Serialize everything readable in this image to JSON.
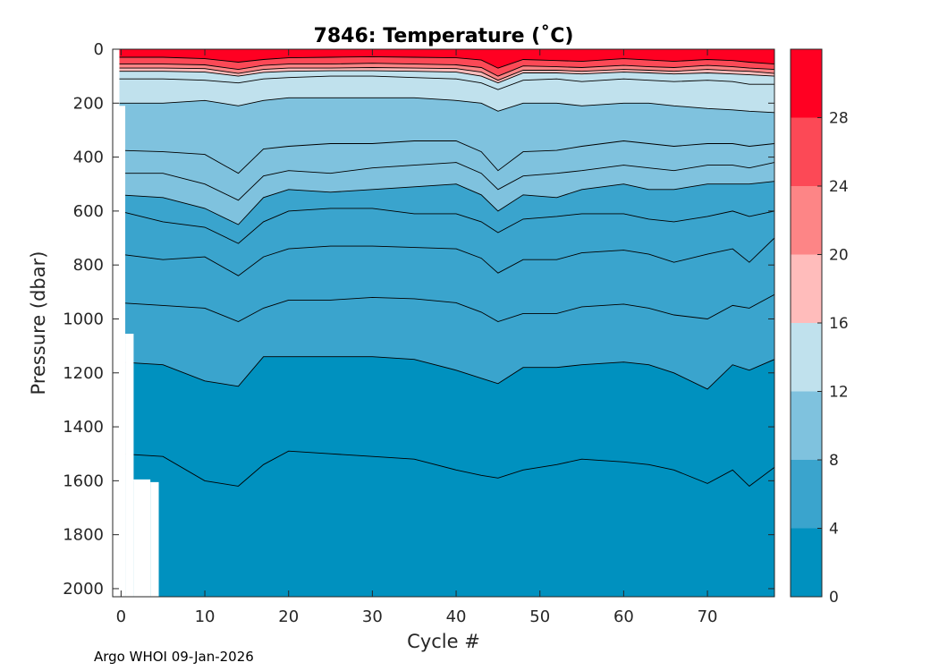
{
  "chart_data": {
    "type": "heatmap",
    "subtype": "filled-contour",
    "title": "7846:  Temperature (˚C)",
    "xlabel": "Cycle #",
    "ylabel": "Pressure (dbar)",
    "xlim": [
      -1,
      78
    ],
    "ylim": [
      0,
      2030
    ],
    "y_reversed": true,
    "xticks": [
      0,
      10,
      20,
      30,
      40,
      50,
      60,
      70
    ],
    "yticks": [
      0,
      200,
      400,
      600,
      800,
      1000,
      1200,
      1400,
      1600,
      1800,
      2000
    ],
    "colorbar": {
      "range": [
        0,
        32
      ],
      "ticks": [
        0,
        4,
        8,
        12,
        16,
        20,
        24,
        28
      ],
      "levels": [
        {
          "min": 0,
          "max": 4,
          "color": "#0091bf"
        },
        {
          "min": 4,
          "max": 8,
          "color": "#3aa4cd"
        },
        {
          "min": 8,
          "max": 12,
          "color": "#7fc2de"
        },
        {
          "min": 12,
          "max": 16,
          "color": "#c0e1ed"
        },
        {
          "min": 16,
          "max": 20,
          "color": "#ffbcbb"
        },
        {
          "min": 20,
          "max": 24,
          "color": "#fd8586"
        },
        {
          "min": 24,
          "max": 28,
          "color": "#fc4956"
        },
        {
          "min": 28,
          "max": 32,
          "color": "#ff0022"
        }
      ]
    },
    "profile_depth_limits": [
      {
        "cycles": [
          -0.2,
          0.5
        ],
        "max_pressure": 210
      },
      {
        "cycles": [
          0.5,
          1.5
        ],
        "max_pressure": 1055
      },
      {
        "cycles": [
          1.5,
          3.5
        ],
        "max_pressure": 1595
      },
      {
        "cycles": [
          3.5,
          4.5
        ],
        "max_pressure": 1605
      },
      {
        "cycles": [
          4.5,
          78
        ],
        "max_pressure": 2035
      }
    ],
    "x_nodes": [
      0,
      5,
      10,
      14,
      17,
      20,
      25,
      30,
      35,
      40,
      43,
      45,
      48,
      52,
      55,
      60,
      63,
      66,
      70,
      73,
      75,
      78
    ],
    "isotherms": [
      {
        "level": 2,
        "pressures": [
          1500,
          1510,
          1600,
          1620,
          1540,
          1490,
          1500,
          1510,
          1520,
          1560,
          1580,
          1590,
          1560,
          1540,
          1520,
          1530,
          1540,
          1560,
          1610,
          1560,
          1620,
          1550
        ]
      },
      {
        "level": 4,
        "pressures": [
          1160,
          1170,
          1230,
          1250,
          1140,
          1140,
          1140,
          1140,
          1150,
          1190,
          1220,
          1240,
          1180,
          1180,
          1170,
          1160,
          1170,
          1200,
          1260,
          1170,
          1190,
          1150
        ]
      },
      {
        "level": 5,
        "pressures": [
          940,
          950,
          960,
          1010,
          960,
          930,
          930,
          920,
          925,
          940,
          975,
          1010,
          980,
          980,
          955,
          945,
          960,
          985,
          1000,
          950,
          960,
          910
        ]
      },
      {
        "level": 6,
        "pressures": [
          760,
          780,
          770,
          840,
          770,
          740,
          730,
          730,
          735,
          740,
          775,
          830,
          780,
          780,
          755,
          745,
          760,
          790,
          760,
          740,
          790,
          700
        ]
      },
      {
        "level": 7,
        "pressures": [
          600,
          640,
          660,
          720,
          640,
          600,
          590,
          590,
          610,
          610,
          640,
          680,
          630,
          620,
          610,
          610,
          630,
          640,
          620,
          600,
          620,
          600
        ]
      },
      {
        "level": 8,
        "pressures": [
          540,
          550,
          590,
          650,
          550,
          520,
          530,
          520,
          510,
          500,
          540,
          600,
          540,
          550,
          520,
          500,
          520,
          520,
          500,
          500,
          500,
          490
        ]
      },
      {
        "level": 9,
        "pressures": [
          460,
          460,
          500,
          560,
          470,
          450,
          460,
          440,
          430,
          420,
          460,
          520,
          470,
          460,
          450,
          430,
          440,
          450,
          430,
          430,
          440,
          420
        ]
      },
      {
        "level": 10,
        "pressures": [
          375,
          380,
          390,
          460,
          370,
          360,
          350,
          350,
          340,
          340,
          380,
          450,
          380,
          375,
          360,
          340,
          350,
          360,
          350,
          350,
          360,
          350
        ]
      },
      {
        "level": 12,
        "pressures": [
          200,
          200,
          190,
          210,
          190,
          180,
          180,
          180,
          180,
          190,
          200,
          230,
          200,
          200,
          210,
          200,
          200,
          210,
          220,
          225,
          230,
          235
        ]
      },
      {
        "level": 14,
        "pressures": [
          110,
          110,
          115,
          125,
          110,
          105,
          100,
          100,
          105,
          110,
          125,
          150,
          115,
          110,
          120,
          110,
          115,
          120,
          115,
          120,
          130,
          130
        ]
      },
      {
        "level": 16,
        "pressures": [
          82,
          82,
          85,
          100,
          86,
          82,
          80,
          80,
          82,
          85,
          100,
          125,
          88,
          88,
          92,
          85,
          88,
          92,
          88,
          92,
          95,
          100
        ]
      },
      {
        "level": 20,
        "pressures": [
          70,
          70,
          72,
          90,
          75,
          70,
          70,
          68,
          70,
          72,
          85,
          115,
          78,
          78,
          82,
          75,
          78,
          82,
          75,
          80,
          82,
          90
        ]
      },
      {
        "level": 24,
        "pressures": [
          55,
          55,
          58,
          75,
          60,
          55,
          55,
          52,
          55,
          58,
          68,
          100,
          62,
          65,
          68,
          60,
          65,
          68,
          60,
          65,
          70,
          75
        ]
      },
      {
        "level": 28,
        "pressures": [
          30,
          30,
          35,
          48,
          38,
          32,
          30,
          28,
          30,
          32,
          40,
          70,
          38,
          42,
          45,
          35,
          40,
          45,
          38,
          42,
          48,
          55
        ]
      }
    ]
  },
  "footer": {
    "text": "Argo WHOI 09-Jan-2026"
  }
}
